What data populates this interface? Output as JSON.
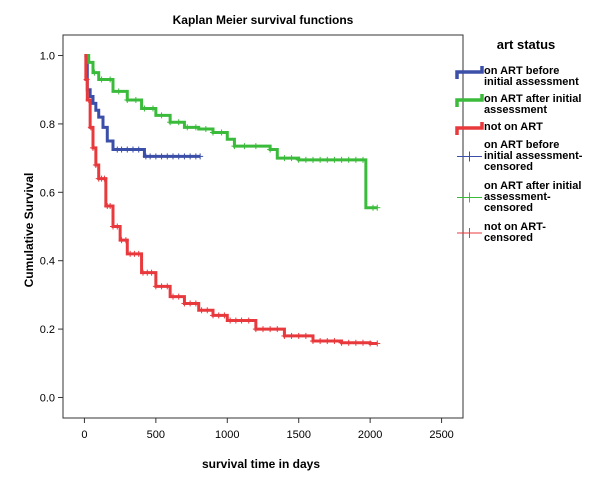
{
  "chart_data": {
    "type": "line",
    "title": "Kaplan Meier survival functions",
    "xlabel": "survival time in days",
    "ylabel": "Cumulative Survival",
    "xlim": [
      -150,
      2650
    ],
    "ylim": [
      -0.06,
      1.06
    ],
    "xticks": [
      "0",
      "500",
      "1000",
      "1500",
      "2000",
      "2500"
    ],
    "yticks": [
      "0.0",
      "0.2",
      "0.4",
      "0.6",
      "0.8",
      "1.0"
    ],
    "grid": false,
    "legend": {
      "title": "art status",
      "placement": "right",
      "entries": [
        {
          "label": "on ART before initial assessment",
          "color": "#3b4fa8",
          "kind": "line"
        },
        {
          "label": "on ART after initial assessment",
          "color": "#3bbb3b",
          "kind": "line"
        },
        {
          "label": "not on ART",
          "color": "#e8393c",
          "kind": "line"
        },
        {
          "label": "on ART before initial assessment-censored",
          "color": "#3b4fa8",
          "kind": "censor"
        },
        {
          "label": "on ART after initial assessment-censored",
          "color": "#3bbb3b",
          "kind": "censor"
        },
        {
          "label": "not on ART-censored",
          "color": "#e8393c",
          "kind": "censor"
        }
      ]
    },
    "series": [
      {
        "name": "on ART before initial assessment",
        "color": "#3b4fa8",
        "x": [
          0,
          20,
          40,
          60,
          80,
          100,
          130,
          160,
          200,
          300,
          420,
          500,
          600,
          700,
          810
        ],
        "y": [
          1.0,
          0.9,
          0.88,
          0.86,
          0.84,
          0.82,
          0.79,
          0.75,
          0.725,
          0.725,
          0.705,
          0.705,
          0.705,
          0.705,
          0.705
        ],
        "censored_x": [
          230,
          260,
          300,
          340,
          380,
          430,
          460,
          500,
          540,
          580,
          620,
          660,
          700,
          740,
          780,
          810
        ]
      },
      {
        "name": "on ART after initial assessment",
        "color": "#3bbb3b",
        "x": [
          0,
          30,
          60,
          100,
          200,
          300,
          400,
          500,
          600,
          700,
          800,
          900,
          1000,
          1050,
          1300,
          1350,
          1500,
          1700,
          1900,
          1960,
          1970,
          2050
        ],
        "y": [
          1.0,
          0.98,
          0.95,
          0.93,
          0.895,
          0.87,
          0.845,
          0.825,
          0.805,
          0.79,
          0.785,
          0.775,
          0.755,
          0.735,
          0.725,
          0.7,
          0.695,
          0.695,
          0.695,
          0.695,
          0.555,
          0.555
        ],
        "censored_x": [
          70,
          120,
          180,
          240,
          300,
          360,
          420,
          480,
          540,
          600,
          660,
          720,
          780,
          850,
          900,
          960,
          1050,
          1120,
          1200,
          1300,
          1400,
          1450,
          1500,
          1550,
          1600,
          1650,
          1700,
          1750,
          1800,
          1850,
          1900,
          1950,
          2020,
          2050
        ]
      },
      {
        "name": "not on ART",
        "color": "#e8393c",
        "x": [
          0,
          10,
          20,
          40,
          60,
          80,
          100,
          150,
          200,
          250,
          300,
          400,
          500,
          600,
          700,
          800,
          900,
          1000,
          1200,
          1400,
          1600,
          1800,
          2000,
          2050
        ],
        "y": [
          1.0,
          0.93,
          0.87,
          0.79,
          0.73,
          0.68,
          0.64,
          0.56,
          0.5,
          0.46,
          0.42,
          0.365,
          0.325,
          0.295,
          0.275,
          0.255,
          0.24,
          0.225,
          0.2,
          0.18,
          0.165,
          0.16,
          0.158,
          0.158
        ],
        "censored_x": [
          15,
          30,
          45,
          60,
          80,
          100,
          120,
          140,
          160,
          180,
          200,
          230,
          260,
          290,
          320,
          350,
          380,
          410,
          440,
          470,
          500,
          540,
          580,
          620,
          660,
          700,
          740,
          780,
          820,
          860,
          900,
          940,
          980,
          1020,
          1060,
          1100,
          1150,
          1200,
          1250,
          1300,
          1350,
          1400,
          1450,
          1500,
          1550,
          1600,
          1650,
          1700,
          1750,
          1800,
          1850,
          1900,
          1950,
          2000,
          2050
        ]
      }
    ]
  }
}
